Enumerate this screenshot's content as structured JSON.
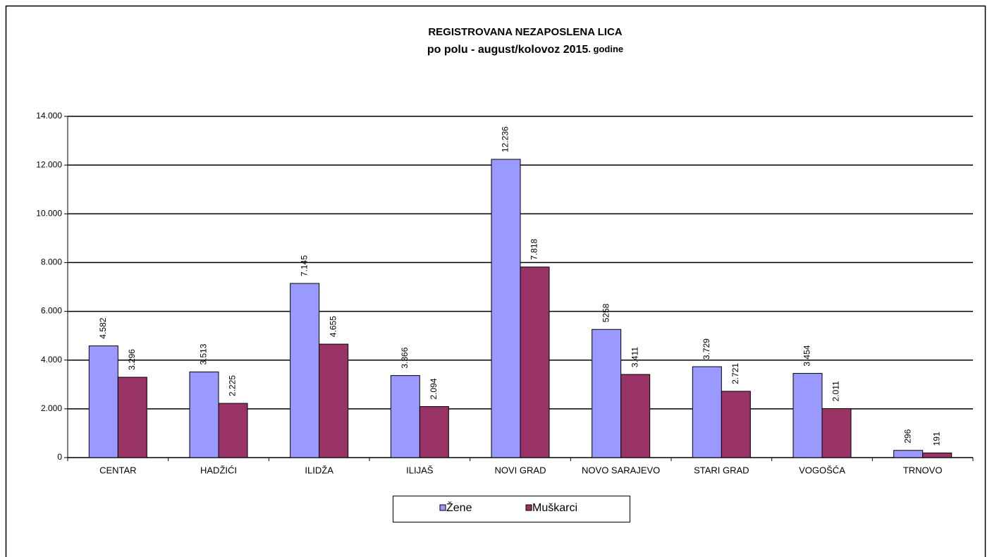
{
  "chart_data": {
    "type": "bar",
    "title": "REGISTROVANA NEZAPOSLENA LICA",
    "subtitle": [
      "po polu - august/kolovoz 2015",
      ". godine"
    ],
    "categories": [
      "CENTAR",
      "HADŽIĆI",
      "ILIDŽA",
      "ILIJAŠ",
      "NOVI GRAD",
      "NOVO SARAJEVO",
      "STARI GRAD",
      "VOGOŠĆA",
      "TRNOVO"
    ],
    "series": [
      {
        "name": "Žene",
        "color": "#9999ff",
        "values": [
          4582,
          3513,
          7145,
          3366,
          12236,
          5258,
          3729,
          3454,
          296
        ],
        "value_labels": [
          "4.582",
          "3.513",
          "7.145",
          "3.366",
          "12.236",
          "5258",
          "3.729",
          "3.454",
          "296"
        ]
      },
      {
        "name": "Muškarci",
        "color": "#993366",
        "values": [
          3296,
          2225,
          4655,
          2094,
          7818,
          3411,
          2721,
          2011,
          191
        ],
        "value_labels": [
          "3.296",
          "2.225",
          "4.655",
          "2.094",
          "7.818",
          "3.411",
          "2.721",
          "2.011",
          "191"
        ]
      }
    ],
    "ylim": [
      0,
      14000
    ],
    "yticks": [
      0,
      {
        "value": 2000,
        "label": "2.000"
      },
      {
        "value": 4000,
        "label": "4.000"
      },
      {
        "value": 6000,
        "label": "6.000"
      },
      {
        "value": 8000,
        "label": "8.000"
      },
      {
        "value": 10000,
        "label": "10.000"
      },
      {
        "value": 12000,
        "label": "12.000"
      },
      {
        "value": 14000,
        "label": "14.000"
      }
    ],
    "grid": true,
    "legend": "bottom"
  }
}
